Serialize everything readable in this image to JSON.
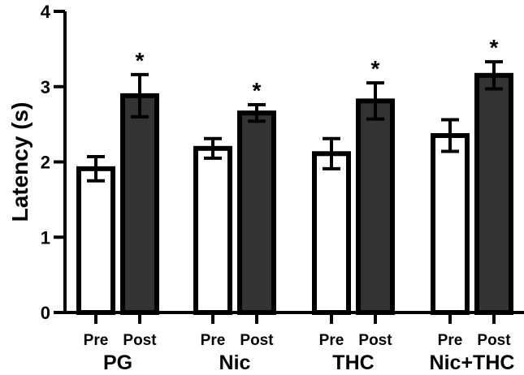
{
  "chart_data": {
    "type": "bar",
    "title": "",
    "xlabel": "",
    "ylabel": "Latency (s)",
    "ylim": [
      0,
      4
    ],
    "yticks": [
      0,
      1,
      2,
      3,
      4
    ],
    "grid": false,
    "legend": null,
    "groups": [
      "PG",
      "Nic",
      "THC",
      "Nic+THC"
    ],
    "categories": [
      "Pre",
      "Post"
    ],
    "series": [
      {
        "name": "Pre",
        "color": "#ffffff",
        "values": [
          1.91,
          2.18,
          2.11,
          2.35
        ],
        "error": [
          0.16,
          0.13,
          0.2,
          0.21
        ]
      },
      {
        "name": "Post",
        "color": "#333333",
        "values": [
          2.88,
          2.65,
          2.81,
          3.15
        ],
        "error": [
          0.28,
          0.11,
          0.24,
          0.18
        ]
      }
    ],
    "annotations": [
      {
        "group": "PG",
        "bar": "Post",
        "text": "*"
      },
      {
        "group": "Nic",
        "bar": "Post",
        "text": "*"
      },
      {
        "group": "THC",
        "bar": "Post",
        "text": "*"
      },
      {
        "group": "Nic+THC",
        "bar": "Post",
        "text": "*"
      }
    ]
  }
}
